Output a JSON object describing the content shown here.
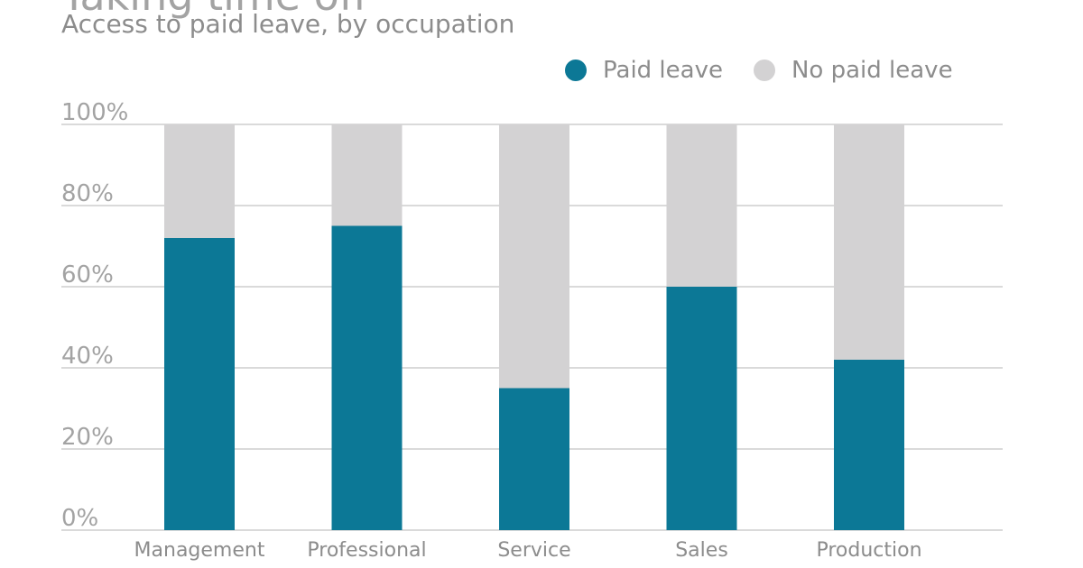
{
  "chart_data": {
    "type": "bar",
    "stacked": true,
    "title": "Taking time off",
    "subtitle": "Access to paid leave, by occupation",
    "categories": [
      "Management",
      "Professional",
      "Service",
      "Sales",
      "Production"
    ],
    "series": [
      {
        "name": "Paid leave",
        "values": [
          72,
          75,
          35,
          60,
          42
        ],
        "color": "#0c7896"
      },
      {
        "name": "No paid leave",
        "values": [
          28,
          25,
          65,
          40,
          58
        ],
        "color": "#d3d2d3"
      }
    ],
    "ylim": [
      0,
      100
    ],
    "yticks": [
      "0%",
      "20%",
      "40%",
      "60%",
      "80%",
      "100%"
    ],
    "grid": true,
    "legend_position": "top-right"
  }
}
